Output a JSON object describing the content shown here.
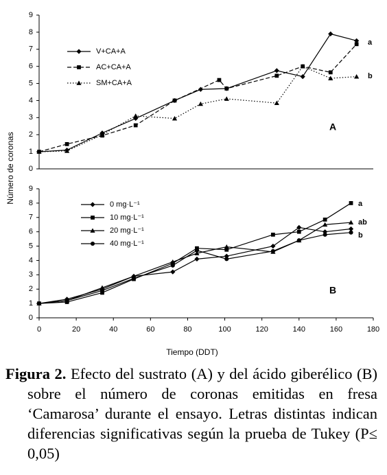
{
  "chart_data": [
    {
      "type": "line",
      "panel_label": "A",
      "ylabel": "Número de coronas",
      "xlim": [
        0,
        180
      ],
      "ylim": [
        0,
        9
      ],
      "yticks": [
        0,
        1,
        2,
        3,
        4,
        5,
        6,
        7,
        8,
        9
      ],
      "series": [
        {
          "name": "V+CA+A",
          "color": "#000000",
          "dash": "solid",
          "marker": "diamond",
          "x": [
            0,
            15,
            34,
            52,
            73,
            87,
            101,
            128,
            142,
            157,
            171
          ],
          "values": [
            1,
            1.1,
            2.1,
            2.95,
            4,
            4.65,
            4.7,
            5.75,
            5.4,
            7.9,
            7.5
          ]
        },
        {
          "name": "AC+CA+A",
          "color": "#000000",
          "dash": "dashed",
          "marker": "square",
          "x": [
            0,
            15,
            34,
            52,
            73,
            97,
            101,
            128,
            142,
            157,
            171
          ],
          "values": [
            1,
            1.45,
            1.95,
            2.55,
            4,
            5.2,
            4.7,
            5.45,
            6,
            5.65,
            7.3
          ]
        },
        {
          "name": "SM+CA+A",
          "color": "#000000",
          "dash": "dotted",
          "marker": "triangle",
          "x": [
            0,
            15,
            34,
            52,
            73,
            87,
            101,
            128,
            142,
            157,
            171
          ],
          "values": [
            1,
            1.05,
            2,
            3.1,
            2.95,
            3.8,
            4.1,
            3.85,
            6,
            5.3,
            5.4
          ]
        }
      ],
      "annotations": [
        "a",
        "b"
      ]
    },
    {
      "type": "line",
      "panel_label": "B",
      "xlabel": "Tiempo (DDT)",
      "xlim": [
        0,
        180
      ],
      "xticks": [
        0,
        20,
        40,
        60,
        80,
        100,
        120,
        140,
        160,
        180
      ],
      "ylim": [
        0,
        9
      ],
      "yticks": [
        0,
        1,
        2,
        3,
        4,
        5,
        6,
        7,
        8,
        9
      ],
      "series": [
        {
          "name": "0 mg·L⁻¹",
          "color": "#000000",
          "dash": "solid",
          "marker": "diamond",
          "x": [
            0,
            15,
            34,
            51,
            72,
            85,
            101,
            126,
            140,
            154,
            168
          ],
          "values": [
            1,
            1.3,
            2,
            2.9,
            3.2,
            4.1,
            4.3,
            5,
            6.3,
            6,
            6.2
          ]
        },
        {
          "name": "10 mg·L⁻¹",
          "color": "#000000",
          "dash": "solid",
          "marker": "square",
          "x": [
            0,
            15,
            34,
            51,
            72,
            85,
            101,
            126,
            140,
            154,
            168
          ],
          "values": [
            1,
            1.1,
            1.75,
            2.7,
            3.8,
            4.85,
            4.75,
            5.8,
            6,
            6.85,
            8
          ]
        },
        {
          "name": "20 mg·L⁻¹",
          "color": "#000000",
          "dash": "solid",
          "marker": "triangle",
          "x": [
            0,
            15,
            34,
            51,
            72,
            85,
            101,
            126,
            140,
            154,
            168
          ],
          "values": [
            1,
            1.2,
            2.1,
            2.9,
            3.9,
            4.5,
            4.95,
            4.6,
            5.4,
            6.5,
            6.65
          ]
        },
        {
          "name": "40 mg·L⁻¹",
          "color": "#000000",
          "dash": "solid",
          "marker": "circle",
          "x": [
            0,
            15,
            34,
            51,
            72,
            85,
            101,
            126,
            140,
            154,
            168
          ],
          "values": [
            1,
            1.2,
            1.9,
            2.75,
            3.65,
            4.7,
            4.1,
            4.65,
            5.4,
            5.8,
            5.95
          ]
        }
      ],
      "annotations": [
        "a",
        "ab",
        "b"
      ]
    }
  ],
  "caption": {
    "label": "Figura 2.",
    "text": "Efecto del sustrato (A) y del ácido giberélico (B) sobre el número de coronas emitidas en fresa ‘Camarosa’ durante el ensayo. Letras distintas indican diferencias significativas según la prueba de Tukey (P≤ 0,05)"
  }
}
